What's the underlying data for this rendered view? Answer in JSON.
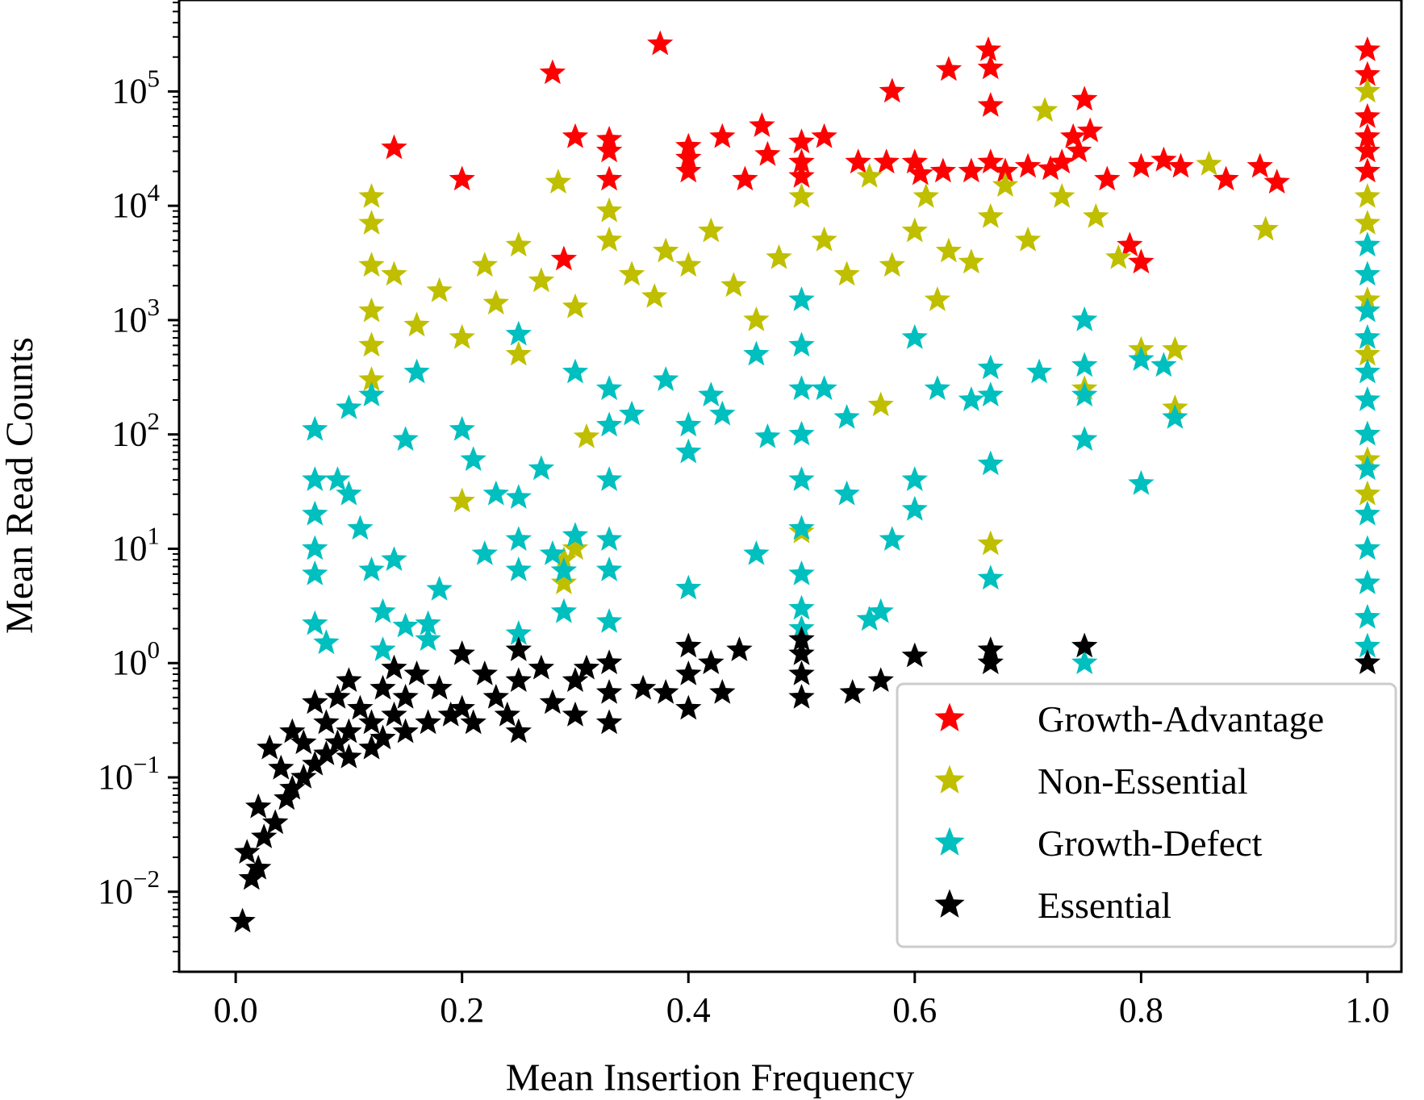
{
  "chart_data": {
    "type": "scatter",
    "title": "",
    "xlabel": "Mean Insertion Frequency",
    "ylabel": "Mean Read Counts",
    "xlim": [
      -0.05,
      1.03
    ],
    "ylim_log10": [
      -2.7,
      5.8
    ],
    "yscale": "log",
    "x_ticks": [
      0.0,
      0.2,
      0.4,
      0.6,
      0.8,
      1.0
    ],
    "x_tick_labels": [
      "0.0",
      "0.2",
      "0.4",
      "0.6",
      "0.8",
      "1.0"
    ],
    "y_ticks_log10": [
      -2,
      -1,
      0,
      1,
      2,
      3,
      4,
      5
    ],
    "y_tick_labels": [
      {
        "base": "10",
        "exp": "−2"
      },
      {
        "base": "10",
        "exp": "−1"
      },
      {
        "base": "10",
        "exp": "0"
      },
      {
        "base": "10",
        "exp": "1"
      },
      {
        "base": "10",
        "exp": "2"
      },
      {
        "base": "10",
        "exp": "3"
      },
      {
        "base": "10",
        "exp": "4"
      },
      {
        "base": "10",
        "exp": "5"
      }
    ],
    "legend_position": "lower-right",
    "series": [
      {
        "name": "Growth-Advantage",
        "color": "#ff0000",
        "points": [
          [
            0.14,
            32000
          ],
          [
            0.2,
            17000
          ],
          [
            0.28,
            145000
          ],
          [
            0.29,
            3400
          ],
          [
            0.3,
            40000
          ],
          [
            0.33,
            38000
          ],
          [
            0.33,
            30000
          ],
          [
            0.33,
            17000
          ],
          [
            0.375,
            260000
          ],
          [
            0.4,
            33000
          ],
          [
            0.4,
            26000
          ],
          [
            0.4,
            20000
          ],
          [
            0.43,
            40000
          ],
          [
            0.45,
            17000
          ],
          [
            0.465,
            50000
          ],
          [
            0.47,
            28000
          ],
          [
            0.5,
            36000
          ],
          [
            0.5,
            24000
          ],
          [
            0.5,
            18000
          ],
          [
            0.52,
            40000
          ],
          [
            0.55,
            24000
          ],
          [
            0.575,
            24000
          ],
          [
            0.58,
            100000
          ],
          [
            0.6,
            24000
          ],
          [
            0.605,
            19000
          ],
          [
            0.625,
            20000
          ],
          [
            0.63,
            155000
          ],
          [
            0.65,
            20000
          ],
          [
            0.665,
            230000
          ],
          [
            0.667,
            160000
          ],
          [
            0.667,
            75000
          ],
          [
            0.667,
            24000
          ],
          [
            0.68,
            20000
          ],
          [
            0.7,
            22000
          ],
          [
            0.72,
            21000
          ],
          [
            0.73,
            24000
          ],
          [
            0.74,
            40000
          ],
          [
            0.745,
            30000
          ],
          [
            0.75,
            85000
          ],
          [
            0.755,
            45000
          ],
          [
            0.77,
            17000
          ],
          [
            0.79,
            4500
          ],
          [
            0.8,
            3200
          ],
          [
            0.8,
            22000
          ],
          [
            0.82,
            25000
          ],
          [
            0.835,
            22000
          ],
          [
            0.875,
            17000
          ],
          [
            0.905,
            22000
          ],
          [
            0.92,
            16000
          ],
          [
            1.0,
            230000
          ],
          [
            1.0,
            140000
          ],
          [
            1.0,
            60000
          ],
          [
            1.0,
            40000
          ],
          [
            1.0,
            30000
          ],
          [
            1.0,
            20000
          ]
        ]
      },
      {
        "name": "Non-Essential",
        "color": "#bfbf00",
        "points": [
          [
            0.12,
            12000
          ],
          [
            0.12,
            7000
          ],
          [
            0.12,
            3000
          ],
          [
            0.12,
            1200
          ],
          [
            0.12,
            600
          ],
          [
            0.12,
            300
          ],
          [
            0.14,
            2500
          ],
          [
            0.16,
            900
          ],
          [
            0.18,
            1800
          ],
          [
            0.2,
            700
          ],
          [
            0.2,
            26
          ],
          [
            0.22,
            3000
          ],
          [
            0.23,
            1400
          ],
          [
            0.25,
            500
          ],
          [
            0.25,
            4500
          ],
          [
            0.27,
            2200
          ],
          [
            0.285,
            16000
          ],
          [
            0.29,
            8
          ],
          [
            0.29,
            5
          ],
          [
            0.3,
            10
          ],
          [
            0.3,
            1300
          ],
          [
            0.31,
            95
          ],
          [
            0.33,
            9000
          ],
          [
            0.33,
            5000
          ],
          [
            0.35,
            2500
          ],
          [
            0.37,
            1600
          ],
          [
            0.38,
            4000
          ],
          [
            0.4,
            3000
          ],
          [
            0.42,
            6000
          ],
          [
            0.44,
            2000
          ],
          [
            0.46,
            1000
          ],
          [
            0.48,
            3500
          ],
          [
            0.5,
            12000
          ],
          [
            0.5,
            14
          ],
          [
            0.52,
            5000
          ],
          [
            0.54,
            2500
          ],
          [
            0.56,
            18000
          ],
          [
            0.57,
            180
          ],
          [
            0.58,
            3000
          ],
          [
            0.6,
            6000
          ],
          [
            0.61,
            12000
          ],
          [
            0.62,
            1500
          ],
          [
            0.63,
            4000
          ],
          [
            0.65,
            3200
          ],
          [
            0.667,
            11
          ],
          [
            0.667,
            8000
          ],
          [
            0.68,
            15000
          ],
          [
            0.7,
            5000
          ],
          [
            0.715,
            68000
          ],
          [
            0.73,
            12000
          ],
          [
            0.75,
            250
          ],
          [
            0.76,
            8000
          ],
          [
            0.78,
            3500
          ],
          [
            0.8,
            550
          ],
          [
            0.83,
            550
          ],
          [
            0.83,
            170
          ],
          [
            0.86,
            23000
          ],
          [
            0.91,
            6200
          ],
          [
            1.0,
            100000
          ],
          [
            1.0,
            12000
          ],
          [
            1.0,
            7000
          ],
          [
            1.0,
            1500
          ],
          [
            1.0,
            500
          ],
          [
            1.0,
            100
          ],
          [
            1.0,
            60
          ],
          [
            1.0,
            30
          ]
        ]
      },
      {
        "name": "Growth-Defect",
        "color": "#00bfbf",
        "points": [
          [
            0.07,
            110
          ],
          [
            0.07,
            40
          ],
          [
            0.07,
            20
          ],
          [
            0.07,
            10
          ],
          [
            0.07,
            6
          ],
          [
            0.07,
            2.2
          ],
          [
            0.08,
            1.5
          ],
          [
            0.09,
            40
          ],
          [
            0.1,
            170
          ],
          [
            0.1,
            30
          ],
          [
            0.11,
            15
          ],
          [
            0.12,
            6.5
          ],
          [
            0.12,
            220
          ],
          [
            0.13,
            2.8
          ],
          [
            0.13,
            1.3
          ],
          [
            0.14,
            8
          ],
          [
            0.15,
            2.1
          ],
          [
            0.15,
            90
          ],
          [
            0.16,
            350
          ],
          [
            0.17,
            1.6
          ],
          [
            0.17,
            2.2
          ],
          [
            0.18,
            4.4
          ],
          [
            0.2,
            110
          ],
          [
            0.21,
            60
          ],
          [
            0.22,
            9
          ],
          [
            0.23,
            30
          ],
          [
            0.25,
            750
          ],
          [
            0.25,
            28
          ],
          [
            0.25,
            12
          ],
          [
            0.25,
            6.5
          ],
          [
            0.25,
            1.8
          ],
          [
            0.27,
            50
          ],
          [
            0.28,
            9
          ],
          [
            0.29,
            6.4
          ],
          [
            0.29,
            2.8
          ],
          [
            0.3,
            13
          ],
          [
            0.3,
            350
          ],
          [
            0.33,
            250
          ],
          [
            0.33,
            120
          ],
          [
            0.33,
            40
          ],
          [
            0.33,
            12
          ],
          [
            0.33,
            6.5
          ],
          [
            0.33,
            2.3
          ],
          [
            0.35,
            150
          ],
          [
            0.38,
            300
          ],
          [
            0.4,
            120
          ],
          [
            0.4,
            70
          ],
          [
            0.4,
            4.5
          ],
          [
            0.42,
            220
          ],
          [
            0.43,
            150
          ],
          [
            0.46,
            500
          ],
          [
            0.46,
            9
          ],
          [
            0.47,
            95
          ],
          [
            0.5,
            1500
          ],
          [
            0.5,
            600
          ],
          [
            0.5,
            250
          ],
          [
            0.5,
            100
          ],
          [
            0.5,
            40
          ],
          [
            0.5,
            15
          ],
          [
            0.5,
            6
          ],
          [
            0.5,
            3
          ],
          [
            0.5,
            2
          ],
          [
            0.52,
            250
          ],
          [
            0.54,
            140
          ],
          [
            0.54,
            30
          ],
          [
            0.56,
            2.4
          ],
          [
            0.57,
            2.8
          ],
          [
            0.58,
            12
          ],
          [
            0.6,
            700
          ],
          [
            0.6,
            40
          ],
          [
            0.6,
            22
          ],
          [
            0.62,
            250
          ],
          [
            0.65,
            200
          ],
          [
            0.667,
            380
          ],
          [
            0.667,
            220
          ],
          [
            0.667,
            55
          ],
          [
            0.667,
            5.5
          ],
          [
            0.71,
            350
          ],
          [
            0.75,
            1000
          ],
          [
            0.75,
            400
          ],
          [
            0.75,
            220
          ],
          [
            0.75,
            90
          ],
          [
            0.75,
            1.0
          ],
          [
            0.8,
            450
          ],
          [
            0.8,
            37
          ],
          [
            0.82,
            400
          ],
          [
            0.83,
            140
          ],
          [
            1.0,
            4500
          ],
          [
            1.0,
            2500
          ],
          [
            1.0,
            1200
          ],
          [
            1.0,
            700
          ],
          [
            1.0,
            350
          ],
          [
            1.0,
            200
          ],
          [
            1.0,
            100
          ],
          [
            1.0,
            50
          ],
          [
            1.0,
            20
          ],
          [
            1.0,
            10
          ],
          [
            1.0,
            5
          ],
          [
            1.0,
            2.5
          ],
          [
            1.0,
            1.4
          ]
        ]
      },
      {
        "name": "Essential",
        "color": "#000000",
        "points": [
          [
            0.006,
            0.0055
          ],
          [
            0.01,
            0.022
          ],
          [
            0.014,
            0.013
          ],
          [
            0.02,
            0.016
          ],
          [
            0.02,
            0.055
          ],
          [
            0.025,
            0.03
          ],
          [
            0.03,
            0.18
          ],
          [
            0.035,
            0.04
          ],
          [
            0.04,
            0.12
          ],
          [
            0.045,
            0.065
          ],
          [
            0.05,
            0.25
          ],
          [
            0.05,
            0.08
          ],
          [
            0.06,
            0.2
          ],
          [
            0.06,
            0.1
          ],
          [
            0.07,
            0.45
          ],
          [
            0.07,
            0.13
          ],
          [
            0.08,
            0.3
          ],
          [
            0.08,
            0.16
          ],
          [
            0.09,
            0.5
          ],
          [
            0.09,
            0.2
          ],
          [
            0.1,
            0.7
          ],
          [
            0.1,
            0.25
          ],
          [
            0.1,
            0.15
          ],
          [
            0.11,
            0.4
          ],
          [
            0.12,
            0.3
          ],
          [
            0.12,
            0.18
          ],
          [
            0.13,
            0.6
          ],
          [
            0.13,
            0.22
          ],
          [
            0.14,
            0.9
          ],
          [
            0.14,
            0.35
          ],
          [
            0.15,
            0.5
          ],
          [
            0.15,
            0.25
          ],
          [
            0.16,
            0.8
          ],
          [
            0.17,
            0.3
          ],
          [
            0.18,
            0.6
          ],
          [
            0.19,
            0.35
          ],
          [
            0.2,
            1.2
          ],
          [
            0.2,
            0.4
          ],
          [
            0.21,
            0.3
          ],
          [
            0.22,
            0.8
          ],
          [
            0.23,
            0.5
          ],
          [
            0.24,
            0.35
          ],
          [
            0.25,
            1.3
          ],
          [
            0.25,
            0.7
          ],
          [
            0.25,
            0.25
          ],
          [
            0.27,
            0.9
          ],
          [
            0.28,
            0.45
          ],
          [
            0.3,
            0.7
          ],
          [
            0.3,
            0.35
          ],
          [
            0.31,
            0.9
          ],
          [
            0.33,
            1.0
          ],
          [
            0.33,
            0.55
          ],
          [
            0.33,
            0.3
          ],
          [
            0.36,
            0.6
          ],
          [
            0.38,
            0.55
          ],
          [
            0.4,
            1.4
          ],
          [
            0.4,
            0.8
          ],
          [
            0.4,
            0.4
          ],
          [
            0.42,
            1.0
          ],
          [
            0.43,
            0.55
          ],
          [
            0.445,
            1.3
          ],
          [
            0.5,
            1.6
          ],
          [
            0.5,
            1.2
          ],
          [
            0.5,
            0.8
          ],
          [
            0.5,
            0.5
          ],
          [
            0.545,
            0.55
          ],
          [
            0.57,
            0.7
          ],
          [
            0.6,
            1.15
          ],
          [
            0.667,
            1.3
          ],
          [
            0.667,
            1.0
          ],
          [
            0.75,
            1.4
          ],
          [
            1.0,
            1.0
          ]
        ]
      }
    ]
  }
}
